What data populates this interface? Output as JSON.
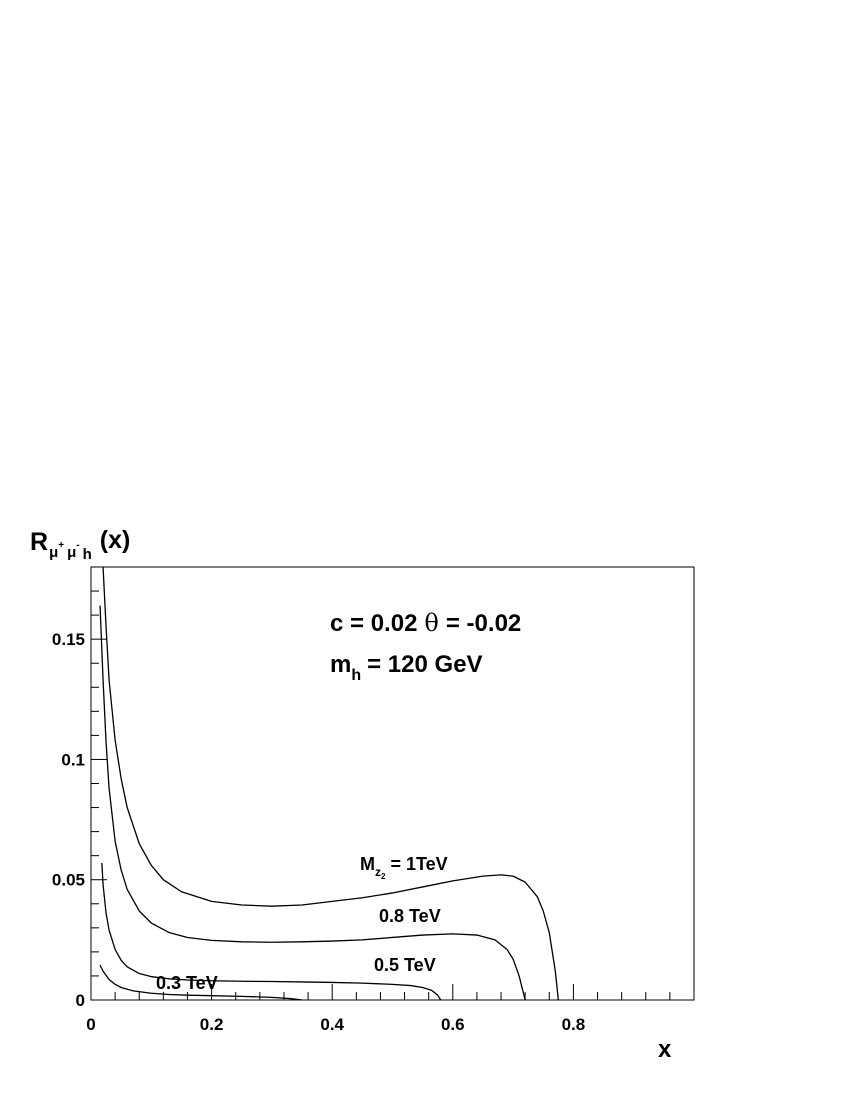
{
  "chart_data": {
    "type": "line",
    "title": "",
    "ylabel": {
      "main": "R",
      "subscript": "μ",
      "sup1": "+",
      "sub2": "μ",
      "sup2": "-",
      "sub3": "h",
      "arg": "(x)"
    },
    "xlabel": "x",
    "xlim": [
      0,
      1.0
    ],
    "ylim": [
      0,
      0.18
    ],
    "x_tick_labels": [
      "0",
      "0.2",
      "0.4",
      "0.6",
      "0.8"
    ],
    "x_ticks": [
      0,
      0.2,
      0.4,
      0.6,
      0.8
    ],
    "y_tick_labels": [
      "0",
      "0.05",
      "0.1",
      "0.15"
    ],
    "y_ticks": [
      0,
      0.05,
      0.1,
      0.15
    ],
    "grid": false,
    "annotations": {
      "line1": {
        "c_part": "c = 0.02",
        "theta": "θ",
        "theta_part": "= -0.02"
      },
      "line2": {
        "m": "m",
        "sub": "h",
        "rest": "= 120 GeV"
      }
    },
    "series": [
      {
        "name": "1TeV",
        "label_main": "M",
        "label_sub": "z",
        "label_subsub": "2",
        "label_rest": "= 1TeV",
        "x": [
          0.02,
          0.025,
          0.03,
          0.04,
          0.05,
          0.06,
          0.08,
          0.1,
          0.12,
          0.15,
          0.2,
          0.25,
          0.3,
          0.35,
          0.4,
          0.45,
          0.5,
          0.55,
          0.6,
          0.65,
          0.68,
          0.7,
          0.72,
          0.74,
          0.75,
          0.76,
          0.77,
          0.775
        ],
        "y": [
          0.18,
          0.155,
          0.133,
          0.108,
          0.092,
          0.08,
          0.065,
          0.056,
          0.05,
          0.045,
          0.041,
          0.0395,
          0.039,
          0.0395,
          0.041,
          0.0425,
          0.0445,
          0.047,
          0.0495,
          0.0515,
          0.052,
          0.0515,
          0.049,
          0.043,
          0.037,
          0.028,
          0.012,
          0.0
        ]
      },
      {
        "name": "0.8 TeV",
        "label_main": "0.8 TeV",
        "x": [
          0.015,
          0.02,
          0.025,
          0.03,
          0.04,
          0.05,
          0.06,
          0.08,
          0.1,
          0.13,
          0.16,
          0.2,
          0.25,
          0.3,
          0.35,
          0.4,
          0.45,
          0.5,
          0.55,
          0.6,
          0.64,
          0.67,
          0.69,
          0.7,
          0.71,
          0.72
        ],
        "y": [
          0.164,
          0.133,
          0.107,
          0.088,
          0.066,
          0.054,
          0.046,
          0.037,
          0.032,
          0.028,
          0.026,
          0.0248,
          0.0242,
          0.024,
          0.0242,
          0.0245,
          0.025,
          0.026,
          0.027,
          0.0275,
          0.027,
          0.025,
          0.021,
          0.017,
          0.01,
          0.0
        ]
      },
      {
        "name": "0.5 TeV",
        "label_main": "0.5 TeV",
        "x": [
          0.018,
          0.02,
          0.025,
          0.03,
          0.04,
          0.05,
          0.06,
          0.08,
          0.1,
          0.13,
          0.16,
          0.2,
          0.25,
          0.3,
          0.35,
          0.4,
          0.45,
          0.5,
          0.53,
          0.55,
          0.565,
          0.575,
          0.58
        ],
        "y": [
          0.057,
          0.048,
          0.036,
          0.029,
          0.021,
          0.0165,
          0.0138,
          0.011,
          0.0097,
          0.0088,
          0.0083,
          0.008,
          0.0078,
          0.0077,
          0.0075,
          0.0073,
          0.007,
          0.0065,
          0.006,
          0.0052,
          0.004,
          0.002,
          0.0
        ]
      },
      {
        "name": "0.3 TeV",
        "label_main": "0.3 TeV",
        "x": [
          0.015,
          0.02,
          0.03,
          0.04,
          0.05,
          0.07,
          0.1,
          0.13,
          0.16,
          0.2,
          0.25,
          0.3,
          0.33,
          0.35
        ],
        "y": [
          0.0145,
          0.012,
          0.0085,
          0.0065,
          0.0052,
          0.0038,
          0.0028,
          0.0023,
          0.002,
          0.0018,
          0.0015,
          0.0011,
          0.0006,
          0.0
        ]
      }
    ]
  }
}
